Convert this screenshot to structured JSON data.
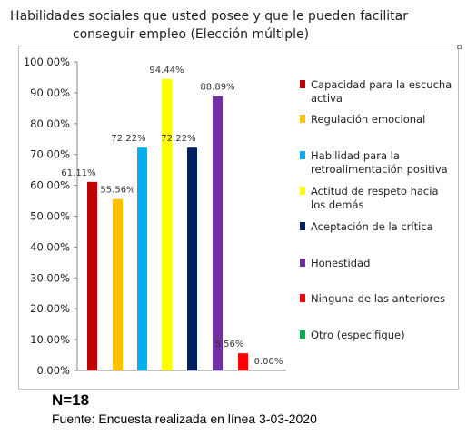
{
  "chart_data": {
    "type": "bar",
    "title_line1": "Habilidades sociales que usted posee y que le pueden facilitar",
    "title_line2": "conseguir empleo (Elección múltiple)",
    "ylim": [
      0,
      100
    ],
    "y_ticks": [
      "0.00%",
      "10.00%",
      "20.00%",
      "30.00%",
      "40.00%",
      "50.00%",
      "60.00%",
      "70.00%",
      "80.00%",
      "90.00%",
      "100.00%"
    ],
    "grid": false,
    "legend_position": "right",
    "categories": [
      "Capacidad para la escucha activa",
      "Regulación emocional",
      "Habilidad para la retroalimentación positiva",
      "Actitud de respeto hacia los demás",
      "Aceptación de la crítica",
      "Honestidad",
      "Ninguna de las anteriores",
      "Otro (especifique)"
    ],
    "legend_lines": [
      [
        "Capacidad para la escucha",
        "activa"
      ],
      [
        "Regulación emocional"
      ],
      [
        "Habilidad para la",
        "retroalimentación positiva"
      ],
      [
        "Actitud de respeto hacia",
        "los demás"
      ],
      [
        "Aceptación de la crítica"
      ],
      [
        "Honestidad"
      ],
      [
        "Ninguna de las anteriores"
      ],
      [
        "Otro (especifique)"
      ]
    ],
    "values": [
      61.11,
      55.56,
      72.22,
      94.44,
      72.22,
      88.89,
      5.56,
      0.0
    ],
    "value_labels": [
      "61.11%",
      "55.56%",
      "72.22%",
      "94.44%",
      "72.22%",
      "88.89%",
      "5.56%",
      "0.00%"
    ],
    "colors": [
      "#c00000",
      "#ffc000",
      "#00b0f0",
      "#ffff00",
      "#002060",
      "#7030a0",
      "#ff0000",
      "#00b050"
    ]
  },
  "footer": {
    "n_label": "N=18",
    "source": "Fuente: Encuesta realizada en línea 3-03-2020"
  }
}
